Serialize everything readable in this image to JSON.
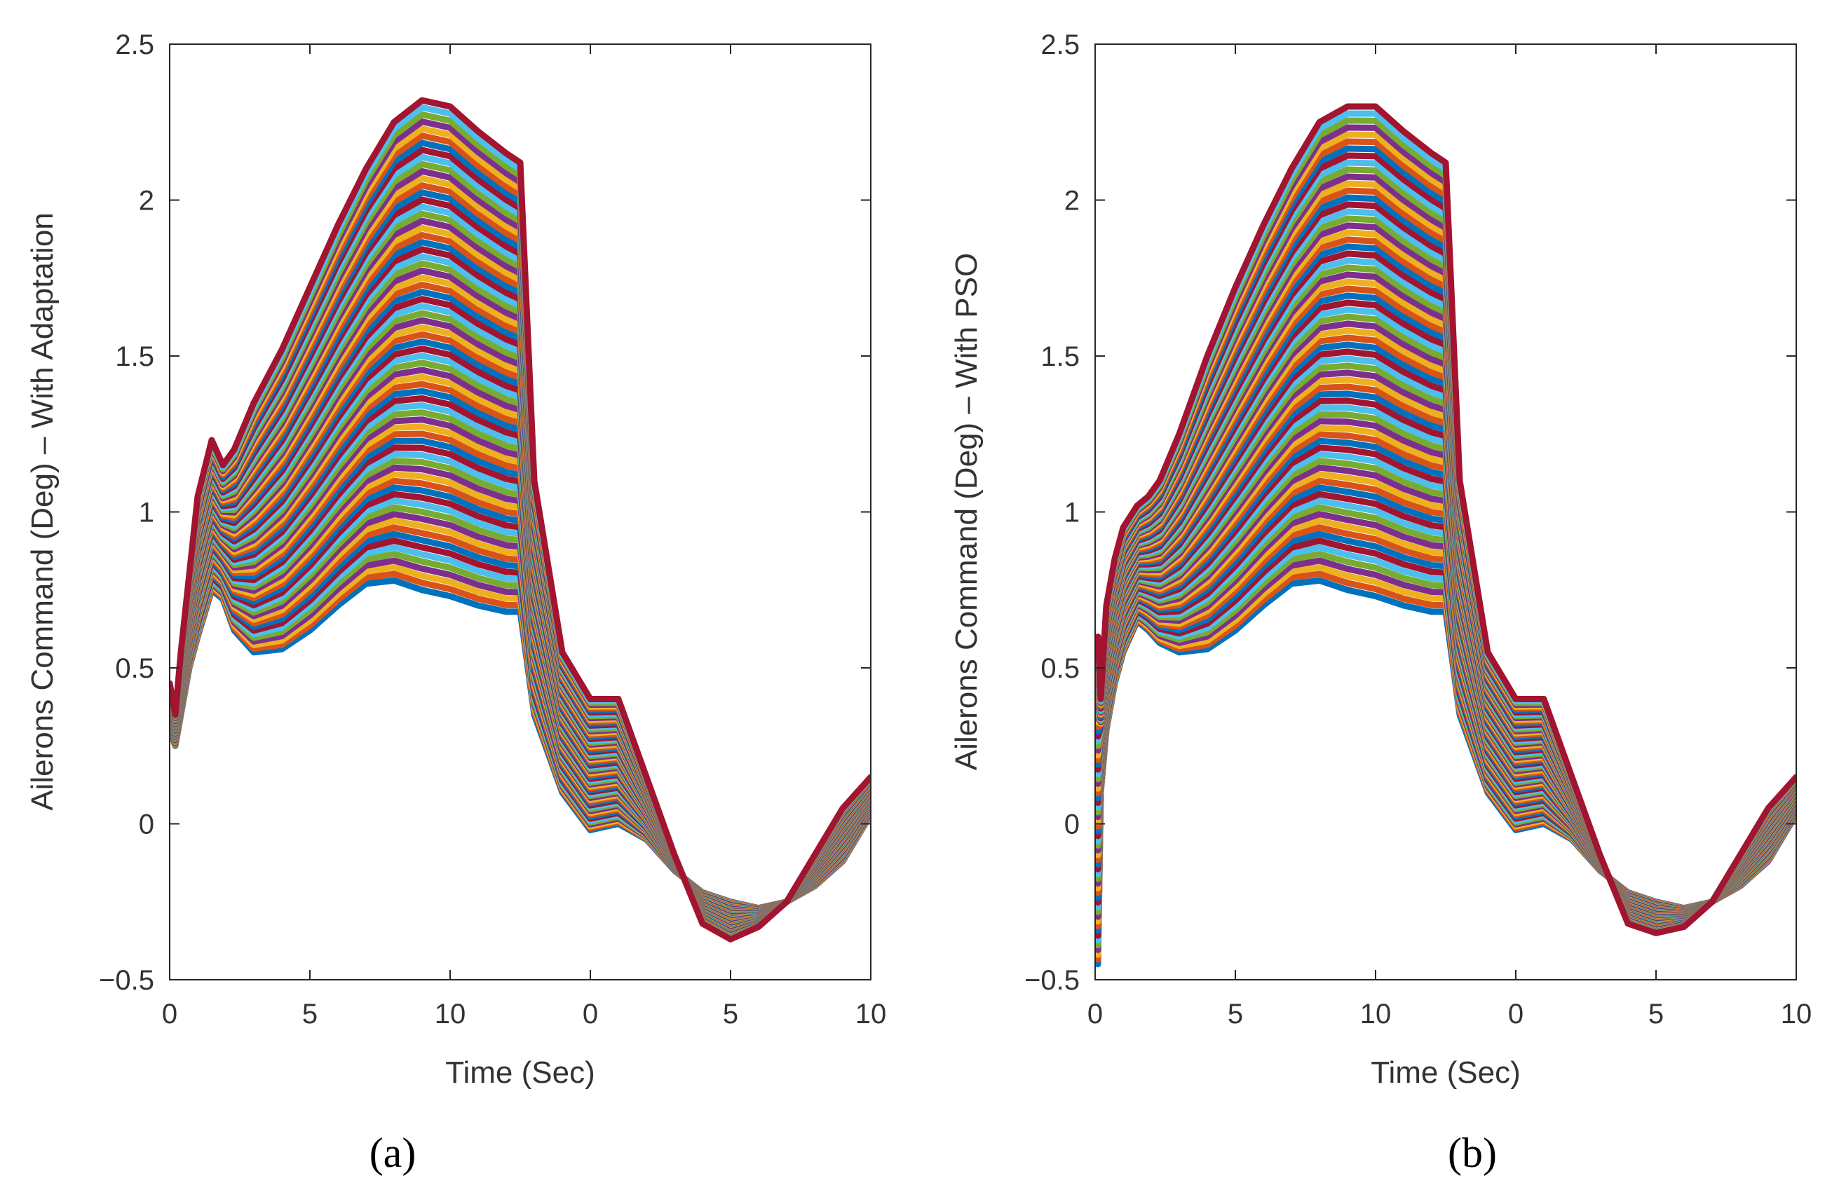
{
  "colors": [
    "#0072BD",
    "#D95319",
    "#EDB120",
    "#7E2F8E",
    "#77AC30",
    "#4DBEEE",
    "#A2142F"
  ],
  "chart_data": [
    {
      "type": "line",
      "panel_label": "(a)",
      "xlabel": "Time (Sec)",
      "ylabel": "Ailerons Command (Deg) – With Adaptation",
      "xticks": [
        "0",
        "5",
        "10",
        "0",
        "5",
        "10"
      ],
      "yticks": [
        "−0.5",
        "0",
        "0.5",
        "1",
        "1.5",
        "2",
        "2.5"
      ],
      "ylim": [
        -0.5,
        2.5
      ],
      "grid": false,
      "legend": "none",
      "series_count": 70,
      "x": [
        0,
        0.2,
        0.4,
        0.7,
        1.0,
        1.5,
        1.9,
        2.3,
        3.0,
        4.0,
        5.0,
        6.0,
        7.0,
        8.0,
        9.0,
        10.0,
        11.0,
        12.0,
        12.5,
        13.0,
        14.0,
        15.0,
        16.0,
        17.0,
        18.0,
        19.0,
        20.0,
        21.0,
        22.0,
        23.0,
        24.0,
        25.0
      ],
      "series_low": [
        0.3,
        0.25,
        0.35,
        0.5,
        0.6,
        0.75,
        0.72,
        0.62,
        0.55,
        0.56,
        0.62,
        0.7,
        0.77,
        0.78,
        0.75,
        0.73,
        0.7,
        0.68,
        0.68,
        0.35,
        0.1,
        -0.02,
        0.0,
        -0.05,
        -0.15,
        -0.22,
        -0.25,
        -0.27,
        -0.25,
        -0.2,
        -0.12,
        0.03
      ],
      "series_high": [
        0.45,
        0.35,
        0.55,
        0.8,
        1.05,
        1.23,
        1.15,
        1.2,
        1.35,
        1.52,
        1.72,
        1.92,
        2.1,
        2.25,
        2.32,
        2.3,
        2.22,
        2.15,
        2.12,
        1.1,
        0.55,
        0.4,
        0.4,
        0.15,
        -0.1,
        -0.32,
        -0.37,
        -0.33,
        -0.25,
        -0.1,
        0.05,
        0.15
      ]
    },
    {
      "type": "line",
      "panel_label": "(b)",
      "xlabel": "Time (Sec)",
      "ylabel": "Ailerons Command  (Deg) – With PSO",
      "xticks": [
        "0",
        "5",
        "10",
        "0",
        "5",
        "10"
      ],
      "yticks": [
        "−0.5",
        "0",
        "0.5",
        "1",
        "1.5",
        "2",
        "2.5"
      ],
      "ylim": [
        -0.5,
        2.5
      ],
      "grid": false,
      "legend": "none",
      "series_count": 70,
      "x": [
        0,
        0.1,
        0.2,
        0.4,
        0.7,
        1.0,
        1.5,
        1.9,
        2.3,
        3.0,
        4.0,
        5.0,
        6.0,
        7.0,
        8.0,
        9.0,
        10.0,
        11.0,
        12.0,
        12.5,
        13.0,
        14.0,
        15.0,
        16.0,
        17.0,
        18.0,
        19.0,
        20.0,
        21.0,
        22.0,
        23.0,
        24.0,
        25.0
      ],
      "series_low": [
        0.3,
        -0.45,
        0.1,
        0.3,
        0.45,
        0.55,
        0.65,
        0.62,
        0.58,
        0.55,
        0.56,
        0.62,
        0.7,
        0.77,
        0.78,
        0.75,
        0.73,
        0.7,
        0.68,
        0.68,
        0.35,
        0.1,
        -0.02,
        0.0,
        -0.05,
        -0.15,
        -0.22,
        -0.25,
        -0.27,
        -0.25,
        -0.2,
        -0.12,
        0.03
      ],
      "series_high": [
        0.55,
        0.6,
        0.4,
        0.7,
        0.85,
        0.95,
        1.02,
        1.05,
        1.1,
        1.25,
        1.5,
        1.72,
        1.92,
        2.1,
        2.25,
        2.3,
        2.3,
        2.22,
        2.15,
        2.12,
        1.1,
        0.55,
        0.4,
        0.4,
        0.15,
        -0.1,
        -0.32,
        -0.35,
        -0.33,
        -0.25,
        -0.1,
        0.05,
        0.15
      ]
    }
  ]
}
